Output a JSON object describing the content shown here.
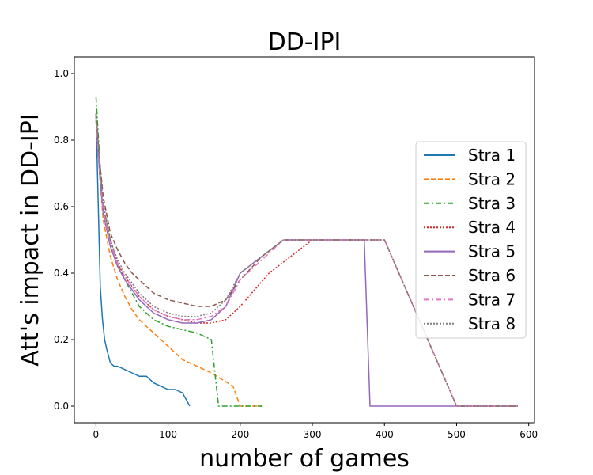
{
  "chart_data": {
    "type": "line",
    "title": "DD-IPI",
    "xlabel": "number of games",
    "ylabel": "Att's impact in DD-IPI",
    "xlim": [
      -30,
      608
    ],
    "ylim": [
      -0.05,
      1.05
    ],
    "xticks": [
      0,
      100,
      200,
      300,
      400,
      500,
      600
    ],
    "xtick_labels": [
      "0",
      "100",
      "200",
      "300",
      "400",
      "500",
      "600"
    ],
    "yticks": [
      0.0,
      0.2,
      0.4,
      0.6,
      0.8,
      1.0
    ],
    "ytick_labels": [
      "0.0",
      "0.2",
      "0.4",
      "0.6",
      "0.8",
      "1.0"
    ],
    "grid": false,
    "legend_position": "center-right",
    "series": [
      {
        "name": "Stra 1",
        "color": "#1f77b4",
        "style": "solid",
        "x": [
          0,
          3,
          6,
          9,
          12,
          15,
          20,
          25,
          30,
          40,
          50,
          60,
          70,
          80,
          90,
          100,
          110,
          120,
          130
        ],
        "y": [
          0.88,
          0.62,
          0.36,
          0.26,
          0.2,
          0.17,
          0.13,
          0.12,
          0.12,
          0.11,
          0.1,
          0.09,
          0.09,
          0.07,
          0.06,
          0.05,
          0.05,
          0.04,
          0.0
        ]
      },
      {
        "name": "Stra 2",
        "color": "#ff7f0e",
        "style": "dashed",
        "x": [
          0,
          5,
          10,
          20,
          30,
          40,
          50,
          60,
          70,
          80,
          90,
          100,
          120,
          140,
          160,
          175,
          190,
          200,
          230
        ],
        "y": [
          0.88,
          0.7,
          0.56,
          0.45,
          0.38,
          0.33,
          0.29,
          0.26,
          0.24,
          0.22,
          0.2,
          0.18,
          0.14,
          0.12,
          0.1,
          0.08,
          0.06,
          0.0,
          0.0
        ]
      },
      {
        "name": "Stra 3",
        "color": "#2ca02c",
        "style": "dashdot",
        "x": [
          0,
          5,
          10,
          20,
          30,
          40,
          50,
          60,
          70,
          80,
          90,
          100,
          120,
          140,
          160,
          170,
          190,
          210,
          230
        ],
        "y": [
          0.93,
          0.75,
          0.6,
          0.5,
          0.43,
          0.38,
          0.34,
          0.3,
          0.28,
          0.26,
          0.25,
          0.24,
          0.23,
          0.22,
          0.2,
          0.0,
          0.0,
          0.0,
          0.0
        ]
      },
      {
        "name": "Stra 4",
        "color": "#d62728",
        "style": "dotted",
        "x": [
          0,
          5,
          10,
          20,
          30,
          40,
          50,
          60,
          70,
          80,
          90,
          100,
          120,
          140,
          160,
          180,
          200,
          240,
          300,
          400,
          500,
          585
        ],
        "y": [
          0.87,
          0.72,
          0.6,
          0.5,
          0.43,
          0.39,
          0.36,
          0.33,
          0.31,
          0.29,
          0.28,
          0.27,
          0.26,
          0.25,
          0.25,
          0.26,
          0.3,
          0.4,
          0.5,
          0.5,
          0.0,
          0.0
        ]
      },
      {
        "name": "Stra 5",
        "color": "#9467bd",
        "style": "solid",
        "x": [
          0,
          5,
          10,
          20,
          30,
          40,
          50,
          60,
          70,
          80,
          90,
          100,
          120,
          140,
          160,
          180,
          200,
          260,
          300,
          372,
          380,
          500,
          585
        ],
        "y": [
          0.86,
          0.7,
          0.58,
          0.48,
          0.42,
          0.38,
          0.35,
          0.32,
          0.3,
          0.28,
          0.27,
          0.26,
          0.25,
          0.25,
          0.26,
          0.3,
          0.4,
          0.5,
          0.5,
          0.5,
          0.0,
          0.0,
          0.0
        ]
      },
      {
        "name": "Stra 6",
        "color": "#8c564b",
        "style": "dashed",
        "x": [
          0,
          5,
          10,
          20,
          30,
          40,
          50,
          60,
          70,
          80,
          90,
          100,
          120,
          140,
          160,
          180,
          200,
          230,
          260,
          300,
          400,
          500,
          585
        ],
        "y": [
          0.88,
          0.74,
          0.63,
          0.52,
          0.47,
          0.43,
          0.4,
          0.38,
          0.36,
          0.34,
          0.33,
          0.32,
          0.31,
          0.3,
          0.3,
          0.32,
          0.38,
          0.45,
          0.5,
          0.5,
          0.5,
          0.0,
          0.0
        ]
      },
      {
        "name": "Stra 7",
        "color": "#e377c2",
        "style": "dashdot",
        "x": [
          0,
          5,
          10,
          20,
          30,
          40,
          50,
          60,
          70,
          80,
          90,
          100,
          120,
          140,
          160,
          180,
          200,
          260,
          300,
          400,
          500,
          585
        ],
        "y": [
          0.86,
          0.71,
          0.59,
          0.49,
          0.43,
          0.39,
          0.36,
          0.33,
          0.31,
          0.29,
          0.28,
          0.27,
          0.26,
          0.26,
          0.27,
          0.3,
          0.38,
          0.5,
          0.5,
          0.5,
          0.0,
          0.0
        ]
      },
      {
        "name": "Stra 8",
        "color": "#7f7f7f",
        "style": "dotted",
        "x": [
          0,
          5,
          10,
          20,
          30,
          40,
          50,
          60,
          70,
          80,
          90,
          100,
          120,
          140,
          160,
          180,
          200,
          260,
          300,
          400,
          500,
          585
        ],
        "y": [
          0.88,
          0.73,
          0.61,
          0.5,
          0.44,
          0.4,
          0.37,
          0.34,
          0.32,
          0.3,
          0.29,
          0.28,
          0.27,
          0.27,
          0.28,
          0.32,
          0.4,
          0.5,
          0.5,
          0.5,
          0.0,
          0.0
        ]
      }
    ]
  }
}
